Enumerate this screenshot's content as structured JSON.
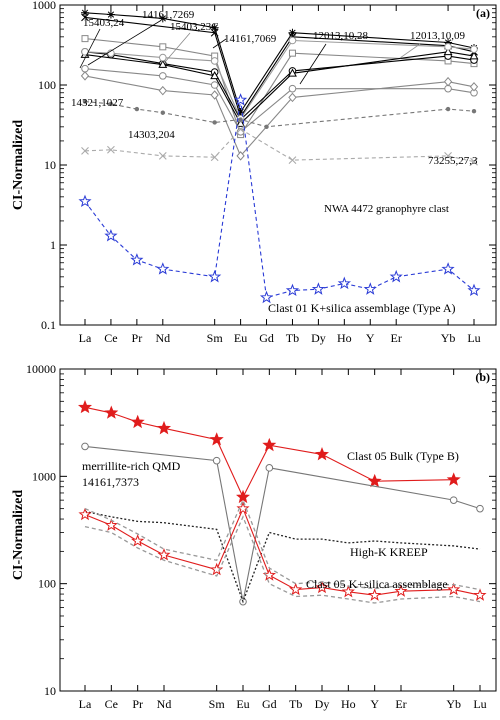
{
  "chart_data": [
    {
      "type": "line",
      "panel_label": "(a)",
      "ylabel": "CI-Normalized",
      "y_scale": "log",
      "ylim": [
        0.1,
        1000
      ],
      "y_ticks": [
        "0.1",
        "1",
        "10",
        "100",
        "1000"
      ],
      "elements": [
        "La",
        "Ce",
        "Pr",
        "Nd",
        "Sm",
        "Eu",
        "Gd",
        "Tb",
        "Dy",
        "Ho",
        "Y",
        "Er",
        "Yb",
        "Lu"
      ],
      "series": [
        {
          "name": "15403,24",
          "color": "#000000",
          "marker": "asterisk",
          "dash": "none",
          "points": [
            [
              "La",
              800
            ],
            [
              "Ce",
              760
            ],
            [
              "Nd",
              680
            ],
            [
              "Sm",
              520
            ],
            [
              "Eu",
              46
            ],
            [
              "Tb",
              450
            ],
            [
              "Yb",
              340
            ],
            [
              "Lu",
              290
            ]
          ]
        },
        {
          "name": "14161,7269",
          "color": "#000000",
          "marker": "xcross",
          "dash": "none",
          "points": [
            [
              "La",
              700
            ],
            [
              "Sm",
              450
            ],
            [
              "Eu",
              40
            ],
            [
              "Tb",
              400
            ],
            [
              "Yb",
              310
            ],
            [
              "Lu",
              260
            ]
          ]
        },
        {
          "name": "15403,23C",
          "color": "#888888",
          "marker": "square",
          "dash": "none",
          "points": [
            [
              "La",
              380
            ],
            [
              "Nd",
              300
            ],
            [
              "Sm",
              230
            ],
            [
              "Eu",
              24
            ],
            [
              "Tb",
              250
            ],
            [
              "Yb",
              200
            ],
            [
              "Lu",
              185
            ]
          ]
        },
        {
          "name": "14161,7069",
          "color": "#000000",
          "marker": "circle",
          "dash": "none",
          "points": [
            [
              "La",
              260
            ],
            [
              "Ce",
              240
            ],
            [
              "Nd",
              185
            ],
            [
              "Sm",
              145
            ],
            [
              "Eu",
              37
            ],
            [
              "Tb",
              150
            ],
            [
              "Yb",
              230
            ],
            [
              "Lu",
              205
            ]
          ]
        },
        {
          "name": "12013,10,28",
          "color": "#000000",
          "marker": "triangle",
          "dash": "none",
          "points": [
            [
              "La",
              240
            ],
            [
              "Nd",
              180
            ],
            [
              "Sm",
              130
            ],
            [
              "Eu",
              33
            ],
            [
              "Tb",
              140
            ],
            [
              "Yb",
              260
            ],
            [
              "Lu",
              230
            ]
          ]
        },
        {
          "name": "12013,10,09",
          "color": "#9a9a9a",
          "marker": "circle",
          "dash": "none",
          "points": [
            [
              "La",
              260
            ],
            [
              "Ce",
              250
            ],
            [
              "Nd",
              220
            ],
            [
              "Sm",
              200
            ],
            [
              "Eu",
              38
            ],
            [
              "Tb",
              360
            ],
            [
              "Yb",
              300
            ],
            [
              "Lu",
              280
            ]
          ]
        },
        {
          "name": "14321,1027",
          "color": "#888888",
          "marker": "circle",
          "dash": "none",
          "points": [
            [
              "La",
              160
            ],
            [
              "Nd",
              130
            ],
            [
              "Sm",
              100
            ],
            [
              "Eu",
              26
            ],
            [
              "Tb",
              90
            ],
            [
              "Yb",
              90
            ],
            [
              "Lu",
              80
            ]
          ]
        },
        {
          "name": "14303,204",
          "color": "#888888",
          "marker": "diamond",
          "dash": "none",
          "points": [
            [
              "La",
              130
            ],
            [
              "Nd",
              85
            ],
            [
              "Sm",
              75
            ],
            [
              "Eu",
              13
            ],
            [
              "Tb",
              70
            ],
            [
              "Yb",
              110
            ],
            [
              "Lu",
              95
            ]
          ]
        },
        {
          "name": "73255,27,3",
          "color": "#777777",
          "marker": "dot",
          "dash": "dashed",
          "points": [
            [
              "La",
              62
            ],
            [
              "Ce",
              58
            ],
            [
              "Pr",
              50
            ],
            [
              "Nd",
              45
            ],
            [
              "Sm",
              34
            ],
            [
              "Eu",
              37
            ],
            [
              "Gd",
              30
            ],
            [
              "Yb",
              50
            ],
            [
              "Lu",
              47
            ]
          ]
        },
        {
          "name": "NWA 4472 granophyre clast",
          "color": "#aaaaaa",
          "marker": "xcross",
          "dash": "dashed",
          "points": [
            [
              "La",
              15
            ],
            [
              "Ce",
              15.5
            ],
            [
              "Nd",
              13
            ],
            [
              "Sm",
              12.5
            ],
            [
              "Eu",
              28
            ],
            [
              "Tb",
              11.5
            ],
            [
              "Yb",
              13
            ],
            [
              "Lu",
              11
            ]
          ]
        },
        {
          "name": "Clast 01 K+silica assemblage (Type A)",
          "color": "#2a3bd6",
          "marker": "star",
          "dash": "dashed",
          "points": [
            [
              "La",
              3.5
            ],
            [
              "Ce",
              1.3
            ],
            [
              "Pr",
              0.65
            ],
            [
              "Nd",
              0.5
            ],
            [
              "Sm",
              0.4
            ],
            [
              "Eu",
              65
            ],
            [
              "Gd",
              0.22
            ],
            [
              "Tb",
              0.27
            ],
            [
              "Dy",
              0.28
            ],
            [
              "Ho",
              0.33
            ],
            [
              "Y",
              0.28
            ],
            [
              "Er",
              0.4
            ],
            [
              "Yb",
              0.5
            ],
            [
              "Lu",
              0.27
            ]
          ]
        }
      ],
      "annotations": [
        {
          "text": "15403,24",
          "color": "#000000"
        },
        {
          "text": "14161,7269",
          "color": "#000000"
        },
        {
          "text": "15403,23C",
          "color": "#888888"
        },
        {
          "text": "14161,7069",
          "color": "#000000"
        },
        {
          "text": "12013,10,28",
          "color": "#000000"
        },
        {
          "text": "12013,10,09",
          "color": "#999999"
        },
        {
          "text": "14321,1027",
          "color": "#888888"
        },
        {
          "text": "14303,204",
          "color": "#777777"
        },
        {
          "text": "73255,27,3",
          "color": "#777777"
        },
        {
          "text": "NWA 4472 granophyre clast",
          "color": "#999999"
        },
        {
          "text": "Clast 01 K+silica assemblage (Type A)",
          "color": "#2a3bd6"
        }
      ]
    },
    {
      "type": "line",
      "panel_label": "(b)",
      "ylabel": "CI-Normalized",
      "y_scale": "log",
      "ylim": [
        10,
        10000
      ],
      "y_ticks": [
        "10",
        "100",
        "1000",
        "10000"
      ],
      "elements": [
        "La",
        "Ce",
        "Pr",
        "Nd",
        "Sm",
        "Eu",
        "Gd",
        "Tb",
        "Dy",
        "Ho",
        "Y",
        "Er",
        "Yb",
        "Lu"
      ],
      "series": [
        {
          "name": "Clast 05 Bulk (Type B)",
          "color": "#e01c1c",
          "marker": "star-filled",
          "dash": "none",
          "points": [
            [
              "La",
              4400
            ],
            [
              "Ce",
              3900
            ],
            [
              "Pr",
              3200
            ],
            [
              "Nd",
              2800
            ],
            [
              "Sm",
              2200
            ],
            [
              "Eu",
              640
            ],
            [
              "Gd",
              1950
            ],
            [
              "Dy",
              1600
            ],
            [
              "Y",
              900
            ],
            [
              "Yb",
              930
            ]
          ]
        },
        {
          "name": "merrillite-rich QMD 14161,7373",
          "color": "#777777",
          "marker": "circle",
          "dash": "none",
          "points": [
            [
              "La",
              1900
            ],
            [
              "Sm",
              1400
            ],
            [
              "Eu",
              68
            ],
            [
              "Gd",
              1200
            ],
            [
              "Yb",
              600
            ],
            [
              "Lu",
              500
            ]
          ]
        },
        {
          "name": "High-K KREEP",
          "color": "#222222",
          "marker": "none",
          "dash": "dotted",
          "points": [
            [
              "La",
              470
            ],
            [
              "Ce",
              420
            ],
            [
              "Pr",
              380
            ],
            [
              "Nd",
              370
            ],
            [
              "Sm",
              320
            ],
            [
              "Eu",
              68
            ],
            [
              "Gd",
              300
            ],
            [
              "Tb",
              260
            ],
            [
              "Dy",
              260
            ],
            [
              "Ho",
              240
            ],
            [
              "Y",
              250
            ],
            [
              "Er",
              240
            ],
            [
              "Yb",
              225
            ],
            [
              "Lu",
              210
            ]
          ]
        },
        {
          "name": "Clast 05 K+silica assemblage",
          "color": "#e01c1c",
          "marker": "star",
          "dash": "none",
          "points": [
            [
              "La",
              440
            ],
            [
              "Ce",
              350
            ],
            [
              "Pr",
              250
            ],
            [
              "Nd",
              185
            ],
            [
              "Sm",
              135
            ],
            [
              "Eu",
              500
            ],
            [
              "Gd",
              120
            ],
            [
              "Tb",
              88
            ],
            [
              "Dy",
              92
            ],
            [
              "Ho",
              84
            ],
            [
              "Y",
              78
            ],
            [
              "Er",
              85
            ],
            [
              "Yb",
              88
            ],
            [
              "Lu",
              78
            ]
          ]
        },
        {
          "name": "",
          "color": "#999999",
          "marker": "none",
          "dash": "dashed",
          "points": [
            [
              "La",
              500
            ],
            [
              "Ce",
              390
            ],
            [
              "Pr",
              290
            ],
            [
              "Nd",
              210
            ],
            [
              "Sm",
              165
            ],
            [
              "Eu",
              600
            ],
            [
              "Gd",
              140
            ],
            [
              "Tb",
              100
            ],
            [
              "Dy",
              104
            ],
            [
              "Ho",
              95
            ],
            [
              "Y",
              90
            ],
            [
              "Er",
              96
            ],
            [
              "Yb",
              98
            ],
            [
              "Lu",
              88
            ]
          ]
        },
        {
          "name": "",
          "color": "#999999",
          "marker": "none",
          "dash": "dashed",
          "points": [
            [
              "La",
              340
            ],
            [
              "Ce",
              300
            ],
            [
              "Pr",
              215
            ],
            [
              "Nd",
              165
            ],
            [
              "Sm",
              118
            ],
            [
              "Eu",
              420
            ],
            [
              "Gd",
              100
            ],
            [
              "Tb",
              76
            ],
            [
              "Dy",
              78
            ],
            [
              "Ho",
              72
            ],
            [
              "Y",
              66
            ],
            [
              "Er",
              72
            ],
            [
              "Yb",
              76
            ],
            [
              "Lu",
              68
            ]
          ]
        }
      ],
      "annotations": [
        {
          "text": "merrillite-rich QMD",
          "color": "#777777"
        },
        {
          "text": "14161,7373",
          "color": "#777777"
        },
        {
          "text": "Clast 05 Bulk (Type B)",
          "color": "#e01c1c"
        },
        {
          "text": "High-K KREEP",
          "color": "#444444"
        },
        {
          "text": "Clast 05 K+silica assemblage",
          "color": "#e01c1c"
        }
      ]
    }
  ]
}
